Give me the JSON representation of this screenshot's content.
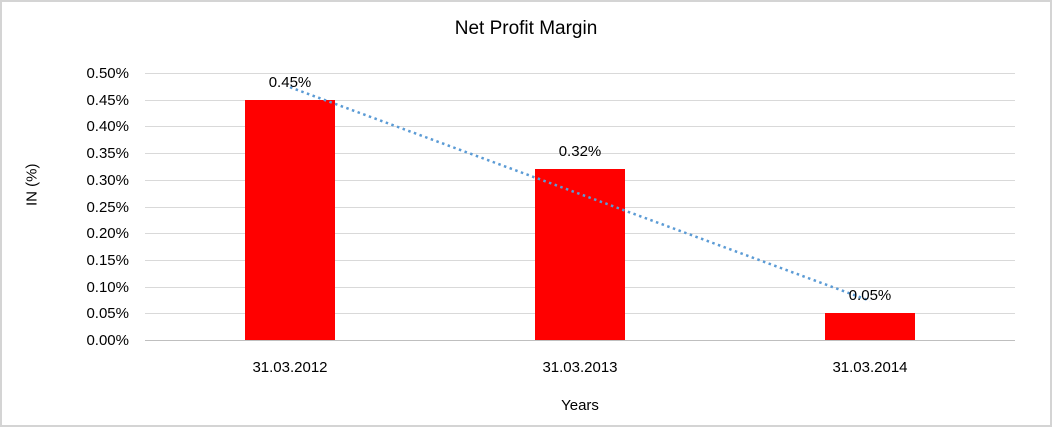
{
  "chart_data": {
    "type": "bar",
    "title": "Net Profit Margin",
    "xlabel": "Years",
    "ylabel": "IN (%)",
    "categories": [
      "31.03.2012",
      "31.03.2013",
      "31.03.2014"
    ],
    "values": [
      0.45,
      0.32,
      0.05
    ],
    "data_labels": [
      "0.45%",
      "0.32%",
      "0.05%"
    ],
    "ylim": [
      0,
      0.5
    ],
    "ytick_step": 0.05,
    "ytick_labels": [
      "0.00%",
      "0.05%",
      "0.10%",
      "0.15%",
      "0.20%",
      "0.25%",
      "0.30%",
      "0.35%",
      "0.40%",
      "0.45%",
      "0.50%"
    ],
    "grid": true,
    "legend": "none",
    "bar_color": "#ff0000",
    "trendline": {
      "type": "linear",
      "style": "dotted",
      "color": "#5b9bd5"
    }
  },
  "colors": {
    "gridline": "#d9d9d9",
    "axis_line": "#bfbfbf",
    "text": "#000000",
    "background": "#ffffff",
    "frame_border": "#d4d4d4"
  }
}
